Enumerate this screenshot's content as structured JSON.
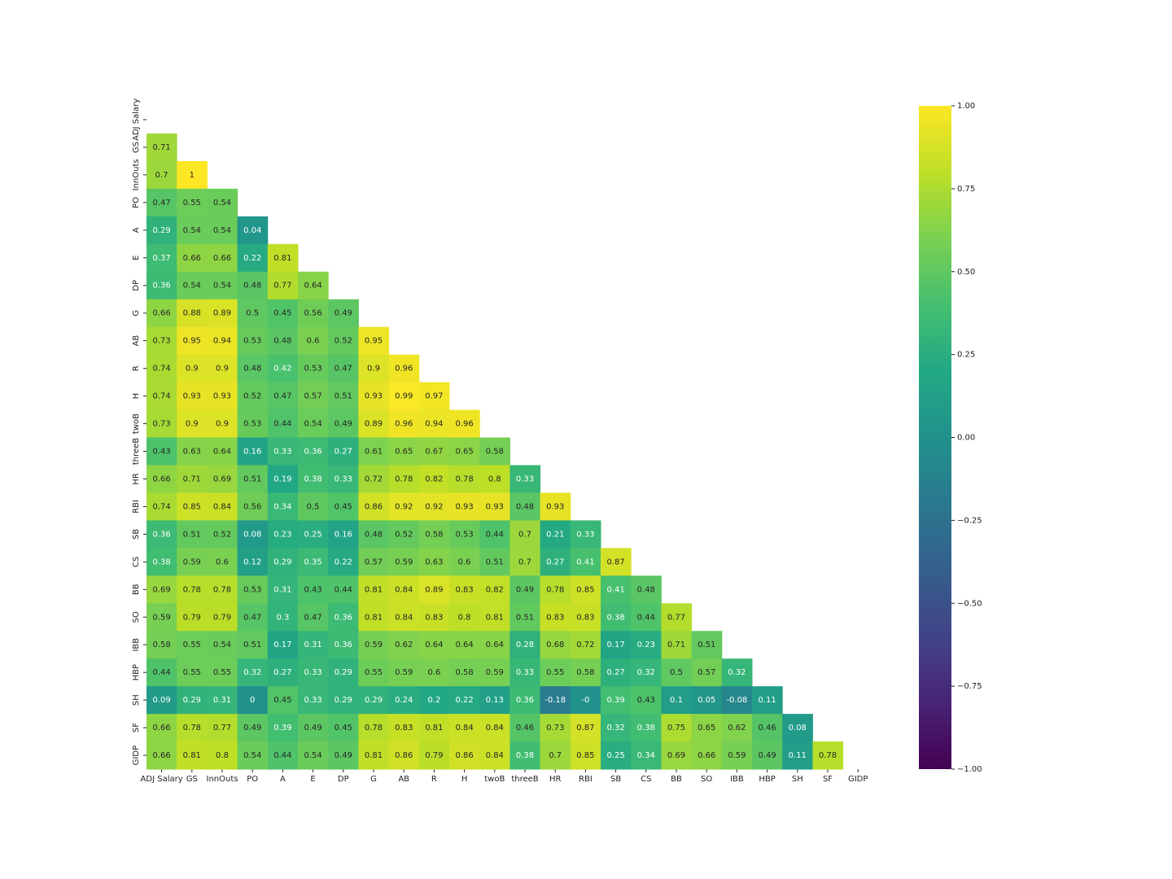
{
  "chart_data": {
    "type": "heatmap",
    "cmap": "viridis",
    "categories": [
      "ADJ Salary",
      "GS",
      "InnOuts",
      "PO",
      "A",
      "E",
      "DP",
      "G",
      "AB",
      "R",
      "H",
      "twoB",
      "threeB",
      "HR",
      "RBI",
      "SB",
      "CS",
      "BB",
      "SO",
      "IBB",
      "HBP",
      "SH",
      "SF",
      "GIDP"
    ],
    "values": [
      [],
      [
        0.71
      ],
      [
        0.7,
        1
      ],
      [
        0.47,
        0.55,
        0.54
      ],
      [
        0.29,
        0.54,
        0.54,
        0.04
      ],
      [
        0.37,
        0.66,
        0.66,
        0.22,
        0.81
      ],
      [
        0.36,
        0.54,
        0.54,
        0.48,
        0.77,
        0.64
      ],
      [
        0.66,
        0.88,
        0.89,
        0.5,
        0.45,
        0.56,
        0.49
      ],
      [
        0.73,
        0.95,
        0.94,
        0.53,
        0.48,
        0.6,
        0.52,
        0.95
      ],
      [
        0.74,
        0.9,
        0.9,
        0.48,
        0.42,
        0.53,
        0.47,
        0.9,
        0.96
      ],
      [
        0.74,
        0.93,
        0.93,
        0.52,
        0.47,
        0.57,
        0.51,
        0.93,
        0.99,
        0.97
      ],
      [
        0.73,
        0.9,
        0.9,
        0.53,
        0.44,
        0.54,
        0.49,
        0.89,
        0.96,
        0.94,
        0.96
      ],
      [
        0.43,
        0.63,
        0.64,
        0.16,
        0.33,
        0.36,
        0.27,
        0.61,
        0.65,
        0.67,
        0.65,
        0.58
      ],
      [
        0.66,
        0.71,
        0.69,
        0.51,
        0.19,
        0.38,
        0.33,
        0.72,
        0.78,
        0.82,
        0.78,
        0.8,
        0.33
      ],
      [
        0.74,
        0.85,
        0.84,
        0.56,
        0.34,
        0.5,
        0.45,
        0.86,
        0.92,
        0.92,
        0.93,
        0.93,
        0.48,
        0.93
      ],
      [
        0.36,
        0.51,
        0.52,
        0.08,
        0.23,
        0.25,
        0.16,
        0.48,
        0.52,
        0.58,
        0.53,
        0.44,
        0.7,
        0.21,
        0.33
      ],
      [
        0.38,
        0.59,
        0.6,
        0.12,
        0.29,
        0.35,
        0.22,
        0.57,
        0.59,
        0.63,
        0.6,
        0.51,
        0.7,
        0.27,
        0.41,
        0.87
      ],
      [
        0.69,
        0.78,
        0.78,
        0.53,
        0.31,
        0.43,
        0.44,
        0.81,
        0.84,
        0.89,
        0.83,
        0.82,
        0.49,
        0.78,
        0.85,
        0.41,
        0.48
      ],
      [
        0.59,
        0.79,
        0.79,
        0.47,
        0.3,
        0.47,
        0.36,
        0.81,
        0.84,
        0.83,
        0.8,
        0.81,
        0.51,
        0.83,
        0.83,
        0.38,
        0.44,
        0.77
      ],
      [
        0.58,
        0.55,
        0.54,
        0.51,
        0.17,
        0.31,
        0.36,
        0.59,
        0.62,
        0.64,
        0.64,
        0.64,
        0.28,
        0.68,
        0.72,
        0.17,
        0.23,
        0.71,
        0.51
      ],
      [
        0.44,
        0.55,
        0.55,
        0.32,
        0.27,
        0.33,
        0.29,
        0.55,
        0.59,
        0.6,
        0.58,
        0.59,
        0.33,
        0.55,
        0.58,
        0.27,
        0.32,
        0.5,
        0.57,
        0.32
      ],
      [
        0.09,
        0.29,
        0.31,
        0,
        0.45,
        0.33,
        0.29,
        0.29,
        0.24,
        0.2,
        0.22,
        0.13,
        0.36,
        -0.18,
        0,
        0.39,
        0.43,
        0.1,
        0.05,
        -0.08,
        0.11
      ],
      [
        0.66,
        0.78,
        0.77,
        0.49,
        0.39,
        0.49,
        0.45,
        0.78,
        0.83,
        0.81,
        0.84,
        0.84,
        0.46,
        0.73,
        0.87,
        0.32,
        0.38,
        0.75,
        0.65,
        0.62,
        0.46,
        0.08
      ],
      [
        0.66,
        0.81,
        0.8,
        0.54,
        0.44,
        0.54,
        0.49,
        0.81,
        0.86,
        0.79,
        0.86,
        0.84,
        0.38,
        0.7,
        0.85,
        0.25,
        0.34,
        0.69,
        0.66,
        0.59,
        0.49,
        0.11,
        0.78
      ]
    ],
    "value_labels": [
      [],
      [
        "0.71"
      ],
      [
        "0.7",
        "1"
      ],
      [
        "0.47",
        "0.55",
        "0.54"
      ],
      [
        "0.29",
        "0.54",
        "0.54",
        "0.04"
      ],
      [
        "0.37",
        "0.66",
        "0.66",
        "0.22",
        "0.81"
      ],
      [
        "0.36",
        "0.54",
        "0.54",
        "0.48",
        "0.77",
        "0.64"
      ],
      [
        "0.66",
        "0.88",
        "0.89",
        "0.5",
        "0.45",
        "0.56",
        "0.49"
      ],
      [
        "0.73",
        "0.95",
        "0.94",
        "0.53",
        "0.48",
        "0.6",
        "0.52",
        "0.95"
      ],
      [
        "0.74",
        "0.9",
        "0.9",
        "0.48",
        "0.42",
        "0.53",
        "0.47",
        "0.9",
        "0.96"
      ],
      [
        "0.74",
        "0.93",
        "0.93",
        "0.52",
        "0.47",
        "0.57",
        "0.51",
        "0.93",
        "0.99",
        "0.97"
      ],
      [
        "0.73",
        "0.9",
        "0.9",
        "0.53",
        "0.44",
        "0.54",
        "0.49",
        "0.89",
        "0.96",
        "0.94",
        "0.96"
      ],
      [
        "0.43",
        "0.63",
        "0.64",
        "0.16",
        "0.33",
        "0.36",
        "0.27",
        "0.61",
        "0.65",
        "0.67",
        "0.65",
        "0.58"
      ],
      [
        "0.66",
        "0.71",
        "0.69",
        "0.51",
        "0.19",
        "0.38",
        "0.33",
        "0.72",
        "0.78",
        "0.82",
        "0.78",
        "0.8",
        "0.33"
      ],
      [
        "0.74",
        "0.85",
        "0.84",
        "0.56",
        "0.34",
        "0.5",
        "0.45",
        "0.86",
        "0.92",
        "0.92",
        "0.93",
        "0.93",
        "0.48",
        "0.93"
      ],
      [
        "0.36",
        "0.51",
        "0.52",
        "0.08",
        "0.23",
        "0.25",
        "0.16",
        "0.48",
        "0.52",
        "0.58",
        "0.53",
        "0.44",
        "0.7",
        "0.21",
        "0.33"
      ],
      [
        "0.38",
        "0.59",
        "0.6",
        "0.12",
        "0.29",
        "0.35",
        "0.22",
        "0.57",
        "0.59",
        "0.63",
        "0.6",
        "0.51",
        "0.7",
        "0.27",
        "0.41",
        "0.87"
      ],
      [
        "0.69",
        "0.78",
        "0.78",
        "0.53",
        "0.31",
        "0.43",
        "0.44",
        "0.81",
        "0.84",
        "0.89",
        "0.83",
        "0.82",
        "0.49",
        "0.78",
        "0.85",
        "0.41",
        "0.48"
      ],
      [
        "0.59",
        "0.79",
        "0.79",
        "0.47",
        "0.3",
        "0.47",
        "0.36",
        "0.81",
        "0.84",
        "0.83",
        "0.8",
        "0.81",
        "0.51",
        "0.83",
        "0.83",
        "0.38",
        "0.44",
        "0.77"
      ],
      [
        "0.58",
        "0.55",
        "0.54",
        "0.51",
        "0.17",
        "0.31",
        "0.36",
        "0.59",
        "0.62",
        "0.64",
        "0.64",
        "0.64",
        "0.28",
        "0.68",
        "0.72",
        "0.17",
        "0.23",
        "0.71",
        "0.51"
      ],
      [
        "0.44",
        "0.55",
        "0.55",
        "0.32",
        "0.27",
        "0.33",
        "0.29",
        "0.55",
        "0.59",
        "0.6",
        "0.58",
        "0.59",
        "0.33",
        "0.55",
        "0.58",
        "0.27",
        "0.32",
        "0.5",
        "0.57",
        "0.32"
      ],
      [
        "0.09",
        "0.29",
        "0.31",
        "0",
        "0.45",
        "0.33",
        "0.29",
        "0.29",
        "0.24",
        "0.2",
        "0.22",
        "0.13",
        "0.36",
        "-0.18",
        "-0",
        "0.39",
        "0.43",
        "0.1",
        "0.05",
        "-0.08",
        "0.11"
      ],
      [
        "0.66",
        "0.78",
        "0.77",
        "0.49",
        "0.39",
        "0.49",
        "0.45",
        "0.78",
        "0.83",
        "0.81",
        "0.84",
        "0.84",
        "0.46",
        "0.73",
        "0.87",
        "0.32",
        "0.38",
        "0.75",
        "0.65",
        "0.62",
        "0.46",
        "0.08"
      ],
      [
        "0.66",
        "0.81",
        "0.8",
        "0.54",
        "0.44",
        "0.54",
        "0.49",
        "0.81",
        "0.86",
        "0.79",
        "0.86",
        "0.84",
        "0.38",
        "0.7",
        "0.85",
        "0.25",
        "0.34",
        "0.69",
        "0.66",
        "0.59",
        "0.49",
        "0.11",
        "0.78"
      ]
    ],
    "clim": [
      -1,
      1
    ],
    "cticks": [
      {
        "value": -1,
        "label": "−1.00"
      },
      {
        "value": -0.75,
        "label": "−0.75"
      },
      {
        "value": -0.5,
        "label": "−0.50"
      },
      {
        "value": -0.25,
        "label": "−0.25"
      },
      {
        "value": 0,
        "label": "0.00"
      },
      {
        "value": 0.25,
        "label": "0.25"
      },
      {
        "value": 0.5,
        "label": "0.50"
      },
      {
        "value": 0.75,
        "label": "0.75"
      },
      {
        "value": 1,
        "label": "1.00"
      }
    ]
  }
}
